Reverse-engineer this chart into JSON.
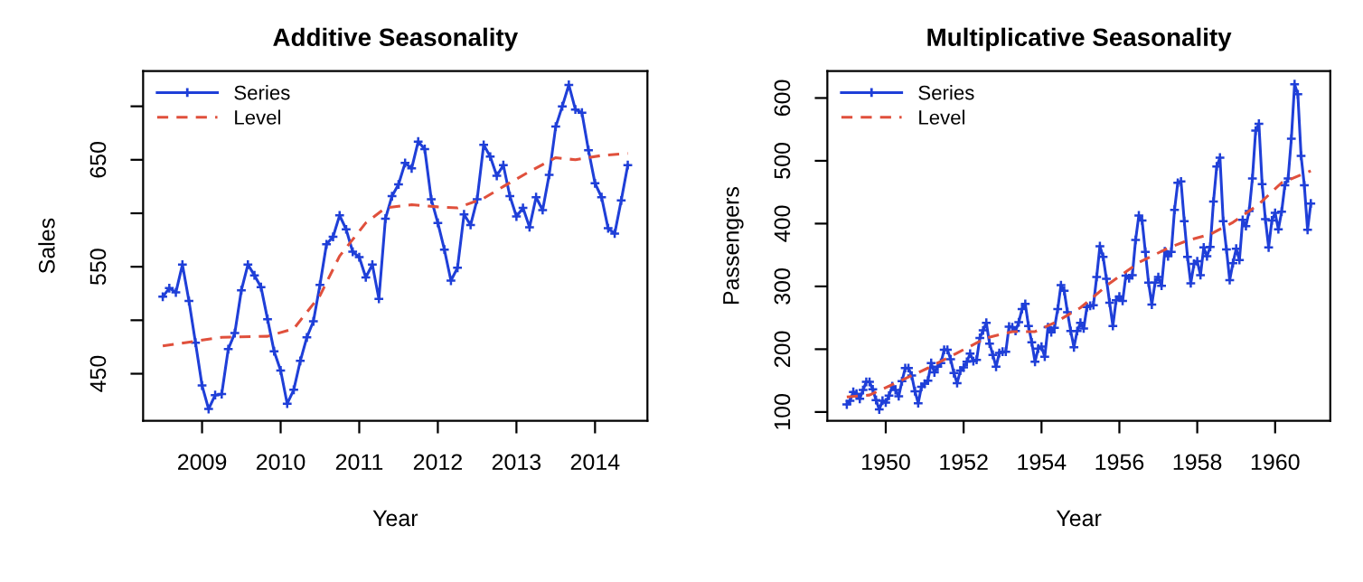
{
  "chart_data": [
    {
      "type": "line",
      "title": "Additive Seasonality",
      "xlabel": "Year",
      "ylabel": "Sales",
      "x": [
        "2008-07",
        "2008-08",
        "2008-09",
        "2008-10",
        "2008-11",
        "2008-12",
        "2009-01",
        "2009-02",
        "2009-03",
        "2009-04",
        "2009-05",
        "2009-06",
        "2009-07",
        "2009-08",
        "2009-09",
        "2009-10",
        "2009-11",
        "2009-12",
        "2010-01",
        "2010-02",
        "2010-03",
        "2010-04",
        "2010-05",
        "2010-06",
        "2010-07",
        "2010-08",
        "2010-09",
        "2010-10",
        "2010-11",
        "2010-12",
        "2011-01",
        "2011-02",
        "2011-03",
        "2011-04",
        "2011-05",
        "2011-06",
        "2011-07",
        "2011-08",
        "2011-09",
        "2011-10",
        "2011-11",
        "2011-12",
        "2012-01",
        "2012-02",
        "2012-03",
        "2012-04",
        "2012-05",
        "2012-06",
        "2012-07",
        "2012-08",
        "2012-09",
        "2012-10",
        "2012-11",
        "2012-12",
        "2013-01",
        "2013-02",
        "2013-03",
        "2013-04",
        "2013-05",
        "2013-06",
        "2013-07",
        "2013-08",
        "2013-09",
        "2013-10",
        "2013-11",
        "2013-12",
        "2014-01",
        "2014-02",
        "2014-03",
        "2014-04",
        "2014-05",
        "2014-06"
      ],
      "series": [
        {
          "name": "Series",
          "color": "#1f3fd8",
          "marker": "cross",
          "line_style": "solid",
          "values": [
            522,
            530,
            526,
            552,
            518,
            479,
            439,
            417,
            430,
            431,
            473,
            488,
            528,
            552,
            542,
            531,
            501,
            471,
            453,
            422,
            435,
            462,
            484,
            499,
            533,
            571,
            578,
            598,
            585,
            564,
            559,
            540,
            552,
            520,
            595,
            616,
            627,
            647,
            642,
            667,
            660,
            613,
            591,
            566,
            537,
            549,
            599,
            589,
            613,
            664,
            653,
            635,
            645,
            616,
            597,
            605,
            587,
            615,
            603,
            636,
            681,
            700,
            720,
            697,
            694,
            659,
            628,
            615,
            586,
            581,
            612,
            645
          ]
        },
        {
          "name": "Level",
          "color": "#e0503c",
          "marker": "none",
          "line_style": "dashed",
          "x": [
            "2008-07",
            "2009-04",
            "2009-11",
            "2010-03",
            "2010-07",
            "2010-10",
            "2011-02",
            "2011-05",
            "2011-09",
            "2012-01",
            "2012-04",
            "2012-08",
            "2012-11",
            "2013-03",
            "2013-07",
            "2013-10",
            "2014-02",
            "2014-06"
          ],
          "values": [
            476,
            484,
            485,
            492,
            523,
            560,
            591,
            605,
            608,
            606,
            605,
            614,
            625,
            639,
            652,
            650,
            654,
            656
          ]
        }
      ],
      "xlim": [
        "2008-04",
        "2014-09"
      ],
      "xticks": [
        "2009",
        "2010",
        "2011",
        "2012",
        "2013",
        "2014"
      ],
      "ylim": [
        406,
        733
      ],
      "yticks": [
        450,
        {
          "value": 500,
          "label": null
        },
        550,
        {
          "value": 600,
          "label": null
        },
        650,
        {
          "value": 700,
          "label": null
        }
      ],
      "legend": "top left",
      "grid": false
    },
    {
      "type": "line",
      "title": "Multiplicative Seasonality",
      "xlabel": "Year",
      "ylabel": "Passengers",
      "x": [
        "1949-01",
        "1949-02",
        "1949-03",
        "1949-04",
        "1949-05",
        "1949-06",
        "1949-07",
        "1949-08",
        "1949-09",
        "1949-10",
        "1949-11",
        "1949-12",
        "1950-01",
        "1950-02",
        "1950-03",
        "1950-04",
        "1950-05",
        "1950-06",
        "1950-07",
        "1950-08",
        "1950-09",
        "1950-10",
        "1950-11",
        "1950-12",
        "1951-01",
        "1951-02",
        "1951-03",
        "1951-04",
        "1951-05",
        "1951-06",
        "1951-07",
        "1951-08",
        "1951-09",
        "1951-10",
        "1951-11",
        "1951-12",
        "1952-01",
        "1952-02",
        "1952-03",
        "1952-04",
        "1952-05",
        "1952-06",
        "1952-07",
        "1952-08",
        "1952-09",
        "1952-10",
        "1952-11",
        "1952-12",
        "1953-01",
        "1953-02",
        "1953-03",
        "1953-04",
        "1953-05",
        "1953-06",
        "1953-07",
        "1953-08",
        "1953-09",
        "1953-10",
        "1953-11",
        "1953-12",
        "1954-01",
        "1954-02",
        "1954-03",
        "1954-04",
        "1954-05",
        "1954-06",
        "1954-07",
        "1954-08",
        "1954-09",
        "1954-10",
        "1954-11",
        "1954-12",
        "1955-01",
        "1955-02",
        "1955-03",
        "1955-04",
        "1955-05",
        "1955-06",
        "1955-07",
        "1955-08",
        "1955-09",
        "1955-10",
        "1955-11",
        "1955-12",
        "1956-01",
        "1956-02",
        "1956-03",
        "1956-04",
        "1956-05",
        "1956-06",
        "1956-07",
        "1956-08",
        "1956-09",
        "1956-10",
        "1956-11",
        "1956-12",
        "1957-01",
        "1957-02",
        "1957-03",
        "1957-04",
        "1957-05",
        "1957-06",
        "1957-07",
        "1957-08",
        "1957-09",
        "1957-10",
        "1957-11",
        "1957-12",
        "1958-01",
        "1958-02",
        "1958-03",
        "1958-04",
        "1958-05",
        "1958-06",
        "1958-07",
        "1958-08",
        "1958-09",
        "1958-10",
        "1958-11",
        "1958-12",
        "1959-01",
        "1959-02",
        "1959-03",
        "1959-04",
        "1959-05",
        "1959-06",
        "1959-07",
        "1959-08",
        "1959-09",
        "1959-10",
        "1959-11",
        "1959-12",
        "1960-01",
        "1960-02",
        "1960-03",
        "1960-04",
        "1960-05",
        "1960-06",
        "1960-07",
        "1960-08",
        "1960-09",
        "1960-10",
        "1960-11",
        "1960-12"
      ],
      "series": [
        {
          "name": "Series",
          "color": "#1f3fd8",
          "marker": "cross",
          "line_style": "solid",
          "values": [
            112,
            118,
            132,
            129,
            121,
            135,
            148,
            148,
            136,
            119,
            104,
            118,
            115,
            126,
            141,
            135,
            125,
            149,
            170,
            170,
            158,
            133,
            114,
            140,
            145,
            150,
            178,
            163,
            172,
            178,
            199,
            199,
            184,
            162,
            146,
            166,
            171,
            180,
            193,
            181,
            183,
            218,
            230,
            242,
            209,
            191,
            172,
            194,
            196,
            196,
            236,
            235,
            229,
            243,
            264,
            272,
            237,
            211,
            180,
            201,
            204,
            188,
            235,
            227,
            234,
            264,
            302,
            293,
            259,
            229,
            203,
            229,
            242,
            233,
            267,
            269,
            270,
            315,
            364,
            347,
            312,
            274,
            237,
            278,
            284,
            277,
            317,
            313,
            318,
            374,
            413,
            405,
            355,
            306,
            271,
            306,
            315,
            301,
            356,
            348,
            355,
            422,
            465,
            467,
            404,
            347,
            305,
            336,
            340,
            318,
            362,
            348,
            363,
            435,
            491,
            505,
            404,
            359,
            310,
            337,
            360,
            342,
            406,
            396,
            420,
            472,
            548,
            559,
            463,
            407,
            362,
            405,
            417,
            391,
            419,
            461,
            472,
            535,
            622,
            606,
            508,
            461,
            390,
            432
          ]
        },
        {
          "name": "Level",
          "color": "#e0503c",
          "marker": "none",
          "line_style": "dashed",
          "x": [
            "1949-01",
            "1949-08",
            "1950-04",
            "1951-02",
            "1951-11",
            "1952-08",
            "1953-04",
            "1953-11",
            "1954-05",
            "1955-01",
            "1955-10",
            "1956-07",
            "1957-04",
            "1957-10",
            "1958-05",
            "1958-12",
            "1959-08",
            "1960-03",
            "1960-12"
          ],
          "values": [
            124,
            127,
            146,
            170,
            194,
            218,
            228,
            228,
            242,
            266,
            305,
            338,
            361,
            373,
            383,
            402,
            431,
            465,
            484
          ]
        }
      ],
      "xlim": [
        "1948-07",
        "1961-06"
      ],
      "xticks": [
        "1950",
        "1952",
        "1954",
        "1956",
        "1958",
        "1960"
      ],
      "ylim": [
        86,
        643
      ],
      "yticks": [
        100,
        200,
        300,
        400,
        500,
        600
      ],
      "legend": "top left",
      "grid": false
    }
  ]
}
